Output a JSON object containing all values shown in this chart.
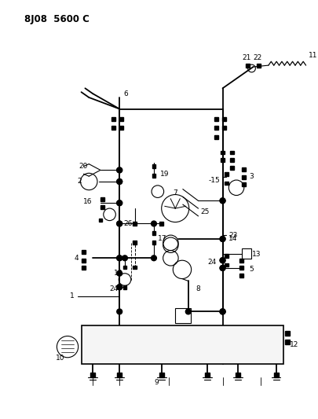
{
  "title": "8J08  5600 C",
  "bg_color": "#ffffff",
  "fig_width": 4.05,
  "fig_height": 5.33,
  "dpi": 100,
  "lw_main": 1.3,
  "lw_thin": 0.8,
  "sq_size": 0.01
}
